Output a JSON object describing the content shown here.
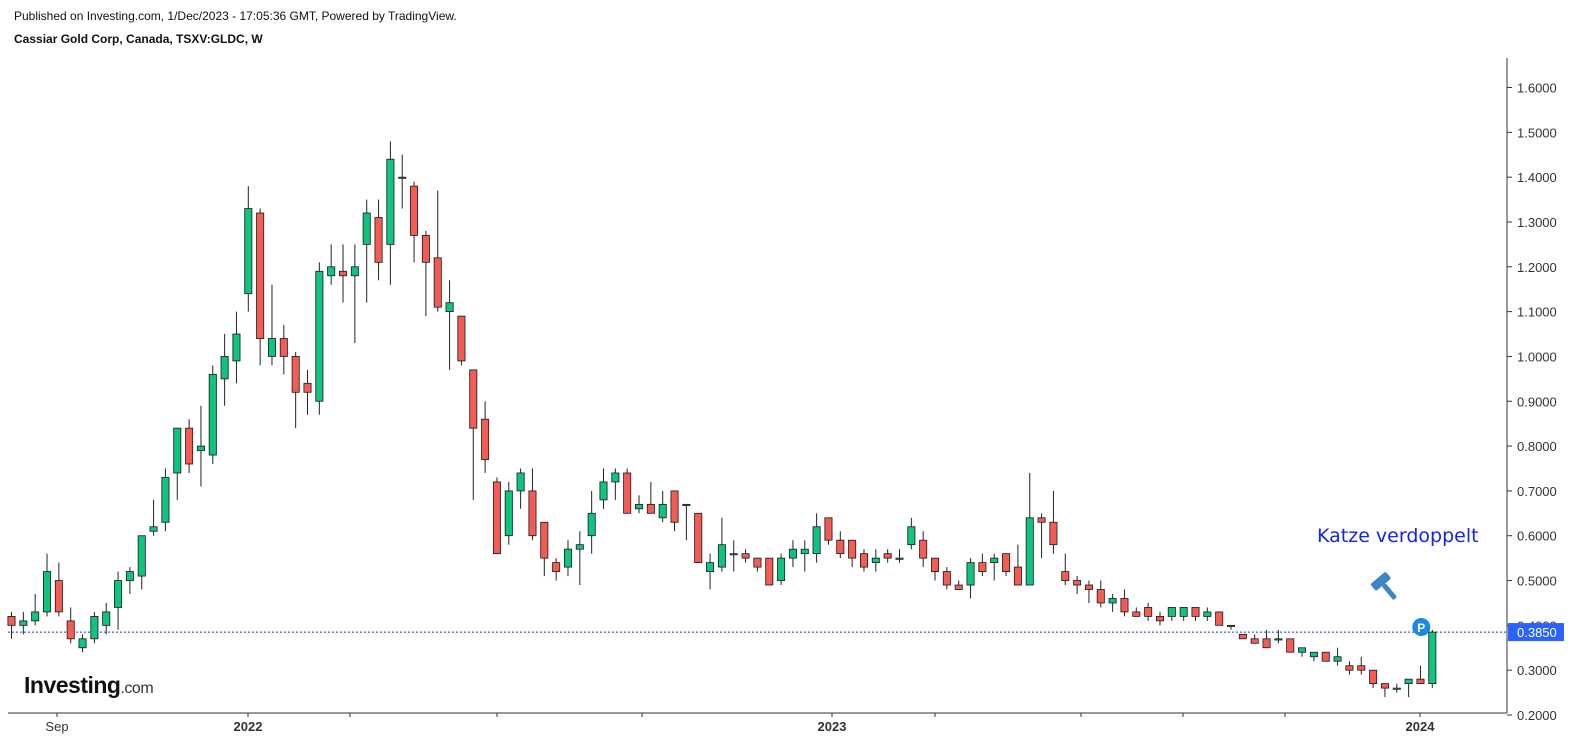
{
  "header": {
    "published": "Published on Investing.com, 1/Dec/2023 - 17:05:36 GMT, Powered by TradingView.",
    "symbol": "Cassiar Gold Corp, Canada, TSXV:GLDC, W"
  },
  "logo": {
    "brand": "Investing",
    "suffix": ".com"
  },
  "annotation": {
    "text": "Katze verdoppelt",
    "icon": "gavel-icon",
    "marker": "P"
  },
  "chart_data": {
    "type": "candlestick",
    "interval": "weekly",
    "ylim": [
      0.18,
      1.63
    ],
    "y_ticks": [
      0.2,
      0.3,
      0.4,
      0.5,
      0.6,
      0.7,
      0.8,
      0.9,
      1.0,
      1.1,
      1.2,
      1.3,
      1.4,
      1.5,
      1.6
    ],
    "y_tick_labels": [
      "0.2000",
      "0.3000",
      "0.4000",
      "0.5000",
      "0.6000",
      "0.7000",
      "0.8000",
      "0.9000",
      "1.0000",
      "1.1000",
      "1.2000",
      "1.3000",
      "1.4000",
      "1.5000",
      "1.6000"
    ],
    "x_labels": [
      "Sep",
      "2022",
      "2023",
      "2024"
    ],
    "last_price": 0.385,
    "last_price_label": "0.3850",
    "colors": {
      "up": "#10c37e",
      "down": "#f25c54",
      "wick": "#222222",
      "price_line": "#1a3fbf",
      "price_tag": "#2962ff",
      "annotation": "#1326e6"
    },
    "ohlc": [
      [
        0.42,
        0.43,
        0.37,
        0.4
      ],
      [
        0.4,
        0.43,
        0.38,
        0.41
      ],
      [
        0.41,
        0.47,
        0.4,
        0.43
      ],
      [
        0.43,
        0.56,
        0.42,
        0.52
      ],
      [
        0.5,
        0.54,
        0.42,
        0.43
      ],
      [
        0.41,
        0.44,
        0.36,
        0.37
      ],
      [
        0.35,
        0.38,
        0.34,
        0.37
      ],
      [
        0.37,
        0.43,
        0.36,
        0.42
      ],
      [
        0.4,
        0.45,
        0.38,
        0.43
      ],
      [
        0.44,
        0.52,
        0.39,
        0.5
      ],
      [
        0.5,
        0.53,
        0.47,
        0.52
      ],
      [
        0.51,
        0.6,
        0.48,
        0.6
      ],
      [
        0.61,
        0.68,
        0.6,
        0.62
      ],
      [
        0.63,
        0.75,
        0.61,
        0.73
      ],
      [
        0.74,
        0.84,
        0.68,
        0.84
      ],
      [
        0.84,
        0.86,
        0.74,
        0.76
      ],
      [
        0.79,
        0.89,
        0.71,
        0.8
      ],
      [
        0.78,
        0.98,
        0.76,
        0.96
      ],
      [
        0.95,
        1.05,
        0.89,
        1.0
      ],
      [
        0.99,
        1.1,
        0.94,
        1.05
      ],
      [
        1.14,
        1.38,
        1.1,
        1.33
      ],
      [
        1.32,
        1.33,
        0.98,
        1.04
      ],
      [
        1.0,
        1.16,
        0.98,
        1.04
      ],
      [
        1.04,
        1.07,
        0.96,
        1.0
      ],
      [
        1.0,
        1.01,
        0.84,
        0.92
      ],
      [
        0.94,
        0.97,
        0.87,
        0.92
      ],
      [
        0.9,
        1.21,
        0.87,
        1.19
      ],
      [
        1.18,
        1.25,
        1.16,
        1.2
      ],
      [
        1.19,
        1.25,
        1.12,
        1.18
      ],
      [
        1.18,
        1.25,
        1.03,
        1.2
      ],
      [
        1.25,
        1.35,
        1.12,
        1.32
      ],
      [
        1.31,
        1.35,
        1.17,
        1.21
      ],
      [
        1.25,
        1.48,
        1.16,
        1.44
      ],
      [
        1.4,
        1.45,
        1.33,
        1.4
      ],
      [
        1.38,
        1.39,
        1.21,
        1.27
      ],
      [
        1.27,
        1.28,
        1.09,
        1.21
      ],
      [
        1.22,
        1.37,
        1.1,
        1.11
      ],
      [
        1.1,
        1.17,
        0.97,
        1.12
      ],
      [
        1.09,
        1.09,
        0.98,
        0.99
      ],
      [
        0.97,
        0.97,
        0.68,
        0.84
      ],
      [
        0.86,
        0.9,
        0.74,
        0.77
      ],
      [
        0.72,
        0.73,
        0.56,
        0.56
      ],
      [
        0.6,
        0.72,
        0.58,
        0.7
      ],
      [
        0.7,
        0.75,
        0.66,
        0.74
      ],
      [
        0.7,
        0.75,
        0.59,
        0.6
      ],
      [
        0.63,
        0.63,
        0.51,
        0.55
      ],
      [
        0.54,
        0.55,
        0.5,
        0.52
      ],
      [
        0.53,
        0.59,
        0.51,
        0.57
      ],
      [
        0.57,
        0.61,
        0.49,
        0.58
      ],
      [
        0.6,
        0.7,
        0.56,
        0.65
      ],
      [
        0.68,
        0.75,
        0.66,
        0.72
      ],
      [
        0.72,
        0.75,
        0.68,
        0.74
      ],
      [
        0.74,
        0.75,
        0.65,
        0.65
      ],
      [
        0.66,
        0.69,
        0.65,
        0.67
      ],
      [
        0.67,
        0.72,
        0.65,
        0.65
      ],
      [
        0.64,
        0.7,
        0.63,
        0.67
      ],
      [
        0.7,
        0.7,
        0.61,
        0.63
      ],
      [
        0.67,
        0.67,
        0.59,
        0.67
      ],
      [
        0.65,
        0.65,
        0.54,
        0.54
      ],
      [
        0.52,
        0.56,
        0.48,
        0.54
      ],
      [
        0.53,
        0.64,
        0.52,
        0.58
      ],
      [
        0.56,
        0.59,
        0.52,
        0.56
      ],
      [
        0.56,
        0.57,
        0.54,
        0.55
      ],
      [
        0.55,
        0.55,
        0.52,
        0.53
      ],
      [
        0.55,
        0.55,
        0.49,
        0.49
      ],
      [
        0.5,
        0.56,
        0.49,
        0.55
      ],
      [
        0.55,
        0.59,
        0.53,
        0.57
      ],
      [
        0.56,
        0.59,
        0.52,
        0.57
      ],
      [
        0.56,
        0.65,
        0.54,
        0.62
      ],
      [
        0.64,
        0.64,
        0.58,
        0.59
      ],
      [
        0.59,
        0.61,
        0.55,
        0.56
      ],
      [
        0.59,
        0.59,
        0.53,
        0.55
      ],
      [
        0.56,
        0.57,
        0.52,
        0.53
      ],
      [
        0.54,
        0.57,
        0.52,
        0.55
      ],
      [
        0.56,
        0.57,
        0.54,
        0.55
      ],
      [
        0.55,
        0.57,
        0.54,
        0.55
      ],
      [
        0.58,
        0.64,
        0.57,
        0.62
      ],
      [
        0.59,
        0.61,
        0.53,
        0.55
      ],
      [
        0.55,
        0.55,
        0.5,
        0.52
      ],
      [
        0.52,
        0.53,
        0.48,
        0.49
      ],
      [
        0.49,
        0.5,
        0.48,
        0.48
      ],
      [
        0.49,
        0.55,
        0.46,
        0.54
      ],
      [
        0.54,
        0.56,
        0.51,
        0.52
      ],
      [
        0.54,
        0.56,
        0.5,
        0.55
      ],
      [
        0.56,
        0.56,
        0.51,
        0.52
      ],
      [
        0.53,
        0.58,
        0.49,
        0.49
      ],
      [
        0.49,
        0.74,
        0.49,
        0.64
      ],
      [
        0.64,
        0.65,
        0.55,
        0.63
      ],
      [
        0.63,
        0.7,
        0.56,
        0.58
      ],
      [
        0.52,
        0.56,
        0.49,
        0.5
      ],
      [
        0.5,
        0.51,
        0.47,
        0.49
      ],
      [
        0.49,
        0.5,
        0.45,
        0.48
      ],
      [
        0.48,
        0.5,
        0.44,
        0.45
      ],
      [
        0.45,
        0.47,
        0.43,
        0.46
      ],
      [
        0.46,
        0.48,
        0.42,
        0.43
      ],
      [
        0.43,
        0.44,
        0.42,
        0.42
      ],
      [
        0.44,
        0.45,
        0.41,
        0.42
      ],
      [
        0.42,
        0.43,
        0.4,
        0.41
      ],
      [
        0.42,
        0.44,
        0.41,
        0.44
      ],
      [
        0.42,
        0.44,
        0.41,
        0.44
      ],
      [
        0.44,
        0.44,
        0.41,
        0.42
      ],
      [
        0.42,
        0.44,
        0.41,
        0.43
      ],
      [
        0.43,
        0.43,
        0.4,
        0.4
      ],
      [
        0.4,
        0.4,
        0.39,
        0.4
      ],
      [
        0.38,
        0.38,
        0.37,
        0.37
      ],
      [
        0.37,
        0.38,
        0.36,
        0.36
      ],
      [
        0.37,
        0.39,
        0.35,
        0.35
      ],
      [
        0.37,
        0.39,
        0.36,
        0.37
      ],
      [
        0.37,
        0.37,
        0.34,
        0.34
      ],
      [
        0.34,
        0.35,
        0.33,
        0.35
      ],
      [
        0.33,
        0.34,
        0.32,
        0.34
      ],
      [
        0.34,
        0.34,
        0.32,
        0.32
      ],
      [
        0.32,
        0.35,
        0.31,
        0.33
      ],
      [
        0.31,
        0.32,
        0.29,
        0.3
      ],
      [
        0.31,
        0.33,
        0.29,
        0.3
      ],
      [
        0.3,
        0.3,
        0.26,
        0.27
      ],
      [
        0.27,
        0.27,
        0.24,
        0.26
      ],
      [
        0.26,
        0.27,
        0.25,
        0.26
      ],
      [
        0.27,
        0.28,
        0.24,
        0.28
      ],
      [
        0.28,
        0.31,
        0.27,
        0.27
      ],
      [
        0.27,
        0.39,
        0.26,
        0.385
      ]
    ]
  }
}
